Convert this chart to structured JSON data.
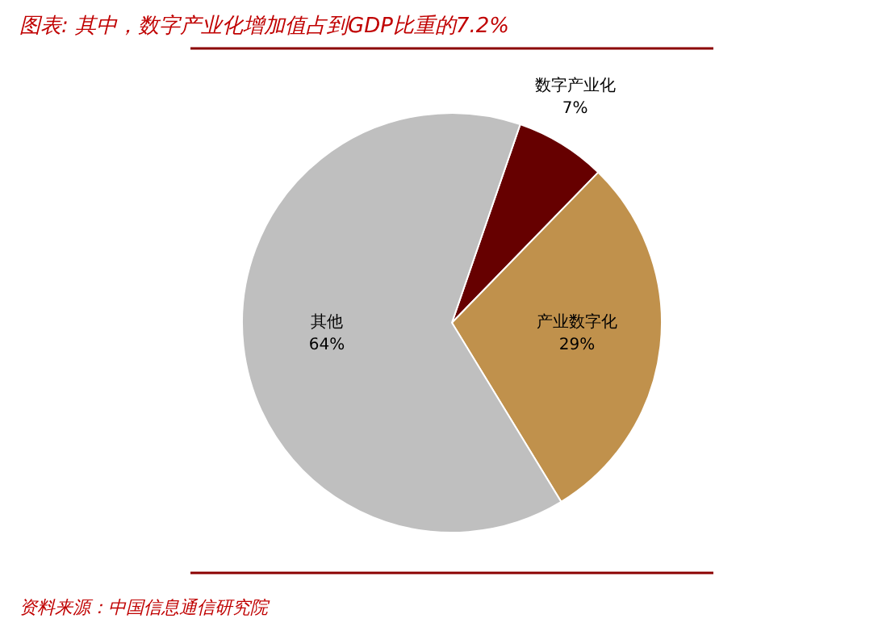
{
  "chart_data": {
    "type": "pie",
    "title": "图表: 其中，数字产业化增加值占到GDP比重的7.2%",
    "categories": [
      "数字产业化",
      "产业数字化",
      "其他"
    ],
    "values": [
      7,
      29,
      64
    ],
    "colors": [
      "#660000",
      "#c0914c",
      "#bfbfbf"
    ],
    "value_labels": [
      "7%",
      "29%",
      "64%"
    ],
    "annotations": [
      "资料来源：中国信息通信研究院"
    ]
  }
}
